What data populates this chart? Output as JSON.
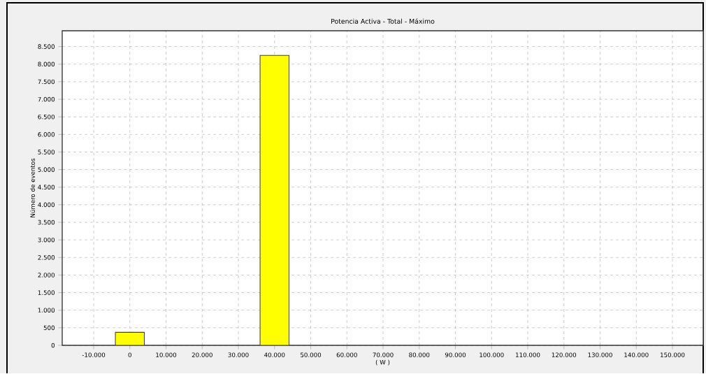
{
  "chart_data": {
    "type": "bar",
    "title": "Potencia Activa  -  Total  -  Máximo",
    "xlabel": "( W )",
    "ylabel": "Número de eventos",
    "x": [
      0,
      40000
    ],
    "values": [
      370,
      8250
    ],
    "color": "#ffff00",
    "xlim": [
      -18700,
      158500
    ],
    "ylim": [
      0,
      8950
    ],
    "xticks": [
      {
        "value": -10000,
        "label": "-10.000"
      },
      0,
      {
        "value": 10000,
        "label": "10.000"
      },
      {
        "value": 20000,
        "label": "20.000"
      },
      {
        "value": 30000,
        "label": "30.000"
      },
      {
        "value": 40000,
        "label": "40.000"
      },
      {
        "value": 50000,
        "label": "50.000"
      },
      {
        "value": 60000,
        "label": "60.000"
      },
      {
        "value": 70000,
        "label": "70.000"
      },
      {
        "value": 80000,
        "label": "80.000"
      },
      {
        "value": 90000,
        "label": "90.000"
      },
      {
        "value": 100000,
        "label": "100.000"
      },
      {
        "value": 110000,
        "label": "110.000"
      },
      {
        "value": 120000,
        "label": "120.000"
      },
      {
        "value": 130000,
        "label": "130.000"
      },
      {
        "value": 140000,
        "label": "140.000"
      },
      {
        "value": 150000,
        "label": "150.000"
      }
    ],
    "yticks": [
      0,
      500,
      {
        "value": 1000,
        "label": "1.000"
      },
      {
        "value": 1500,
        "label": "1.500"
      },
      {
        "value": 2000,
        "label": "2.000"
      },
      {
        "value": 2500,
        "label": "2.500"
      },
      {
        "value": 3000,
        "label": "3.000"
      },
      {
        "value": 3500,
        "label": "3.500"
      },
      {
        "value": 4000,
        "label": "4.000"
      },
      {
        "value": 4500,
        "label": "4.500"
      },
      {
        "value": 5000,
        "label": "5.000"
      },
      {
        "value": 5500,
        "label": "5.500"
      },
      {
        "value": 6000,
        "label": "6.000"
      },
      {
        "value": 6500,
        "label": "6.500"
      },
      {
        "value": 7000,
        "label": "7.000"
      },
      {
        "value": 7500,
        "label": "7.500"
      },
      {
        "value": 8000,
        "label": "8.000"
      },
      {
        "value": 8500,
        "label": "8.500"
      }
    ],
    "grid": true,
    "line_style": "dashed"
  }
}
